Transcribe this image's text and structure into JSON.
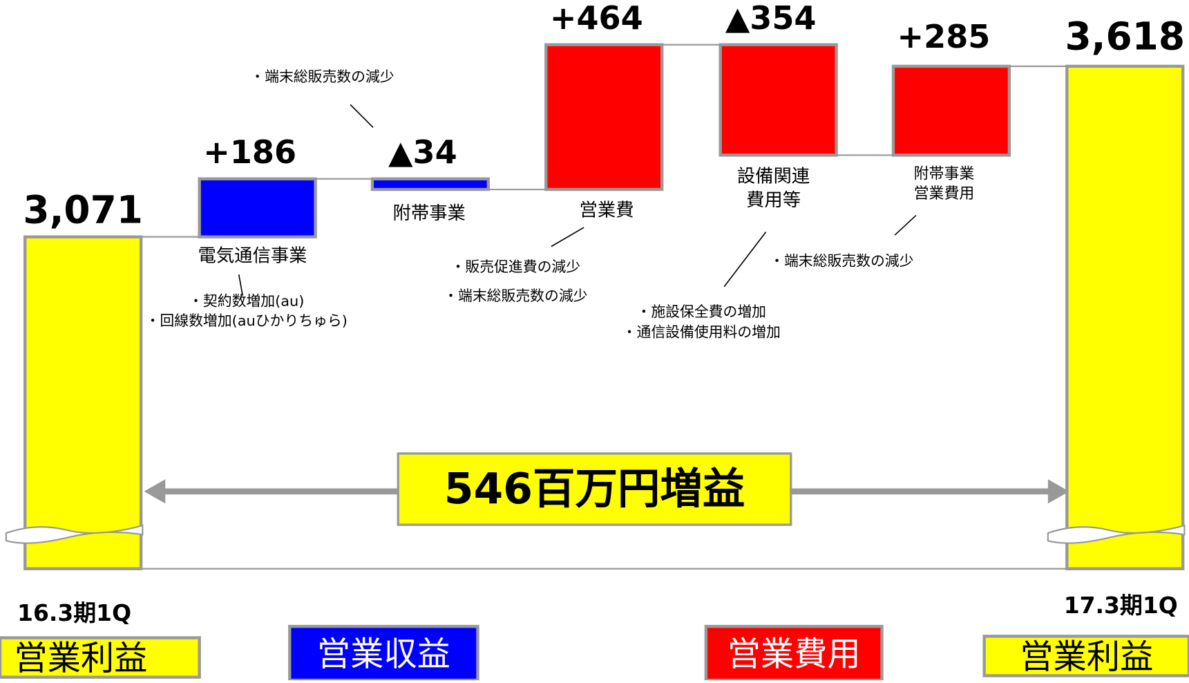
{
  "chart_data": {
    "type": "waterfall",
    "categories": [
      "16.3期1Q",
      "電気通信事業",
      "附帯事業",
      "営業費",
      "設備関連\n費用等",
      "附帯事業\n営業費用",
      "17.3期1Q"
    ],
    "values": [
      3071,
      186,
      -34,
      464,
      -354,
      285,
      3618
    ],
    "value_labels": [
      "3,071",
      "+186",
      "▲34",
      "+464",
      "▲354",
      "+285",
      "3,618"
    ],
    "colors": [
      "#ffff00",
      "#0000ff",
      "#0000ff",
      "#ff0000",
      "#ff0000",
      "#ff0000",
      "#ffff00"
    ],
    "annotations": [
      [],
      [
        "・契約数増加(au)",
        "・回線数増加(auひかりちゅら)"
      ],
      [
        "・端末総販売数の減少"
      ],
      [
        "・販売促進費の減少",
        "・端末総販売数の減少"
      ],
      [
        "・施設保全費の増加",
        "・通信設備使用料の増加"
      ],
      [
        "・端末総販売数の減少"
      ],
      []
    ],
    "difference_label": "546百万円増益",
    "legend": [
      {
        "name": "営業利益",
        "color": "#ffff00"
      },
      {
        "name": "営業収益",
        "color": "#0000ff"
      },
      {
        "name": "営業費用",
        "color": "#ff0000"
      },
      {
        "name": "営業利益",
        "color": "#ffff00"
      }
    ]
  }
}
